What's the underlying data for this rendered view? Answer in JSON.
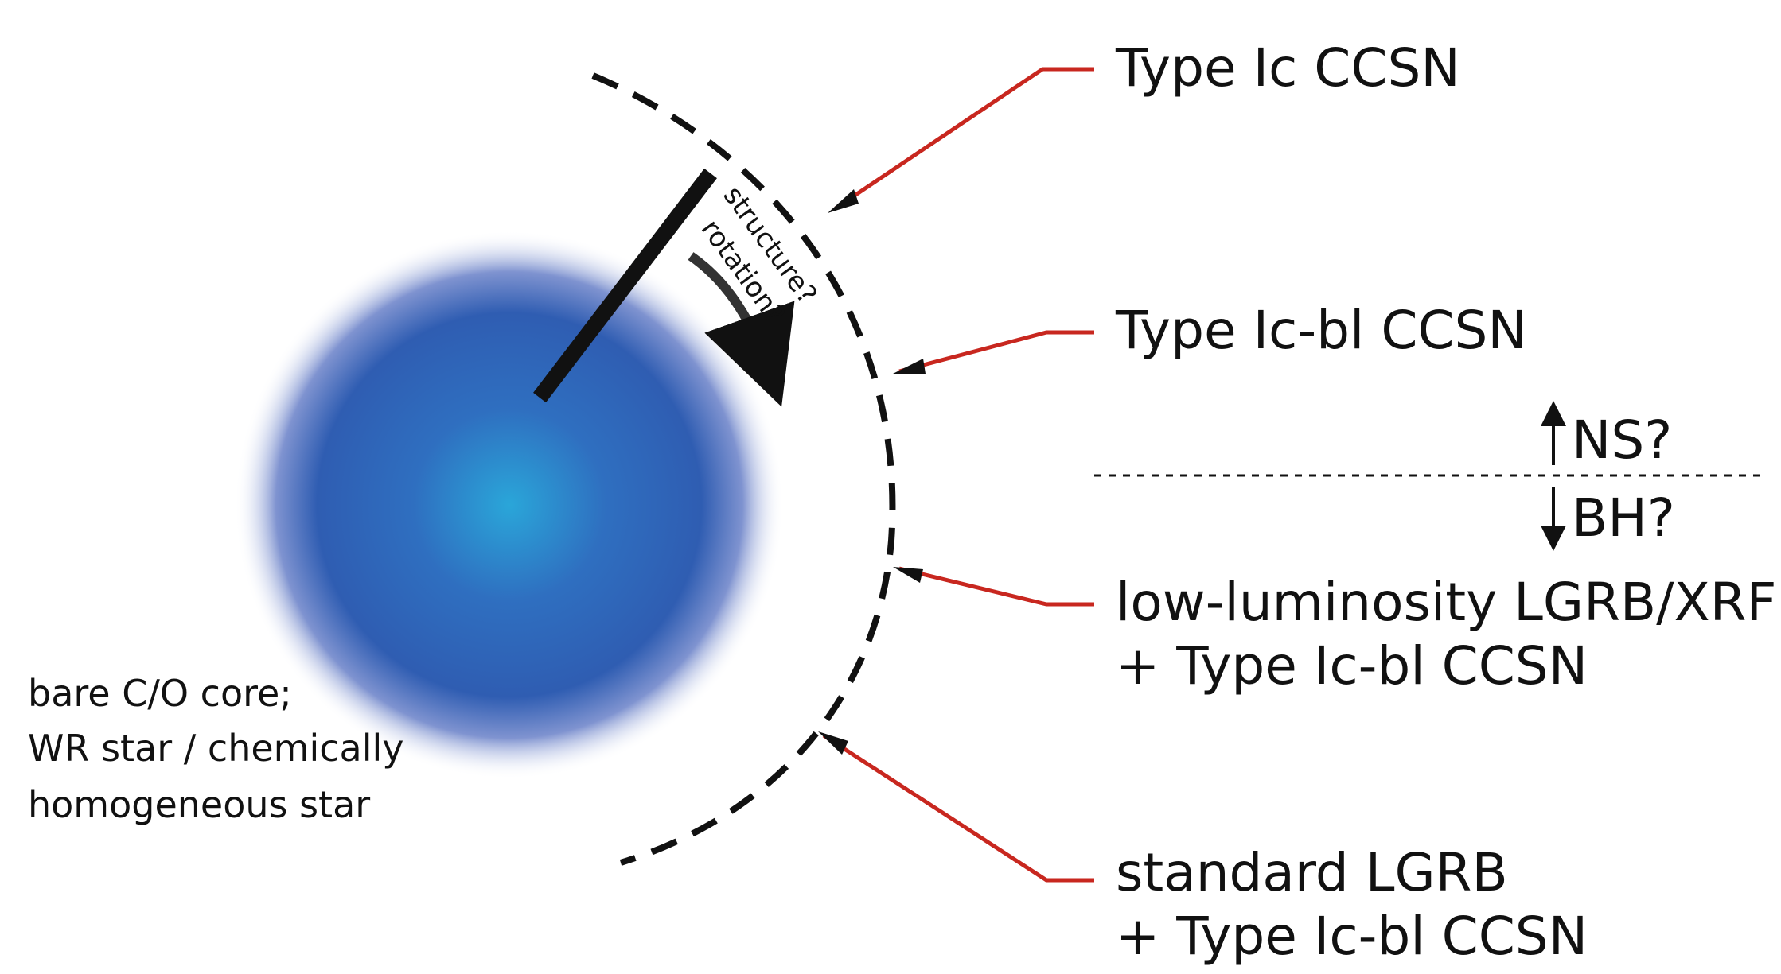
{
  "labels": {
    "type_ic": "Type Ic CCSN",
    "type_ic_bl": "Type Ic-bl CCSN",
    "ns": "NS?",
    "bh": "BH?",
    "ll_line1": "low-luminosity LGRB/XRF",
    "ll_line2": "+ Type Ic-bl CCSN",
    "std_line1": "standard LGRB",
    "std_line2": "+ Type Ic-bl CCSN",
    "structure": "structure?",
    "rotation": "rotation?",
    "core_line1": "bare C/O core;",
    "core_line2": "WR star / chemically",
    "core_line3": "homogeneous star"
  },
  "colors": {
    "star_center": "#2aa6d9",
    "star_mid": "#2f63b7",
    "star_edge": "#e9ecf8",
    "pointer": "#c8271f",
    "ink": "#111111"
  }
}
